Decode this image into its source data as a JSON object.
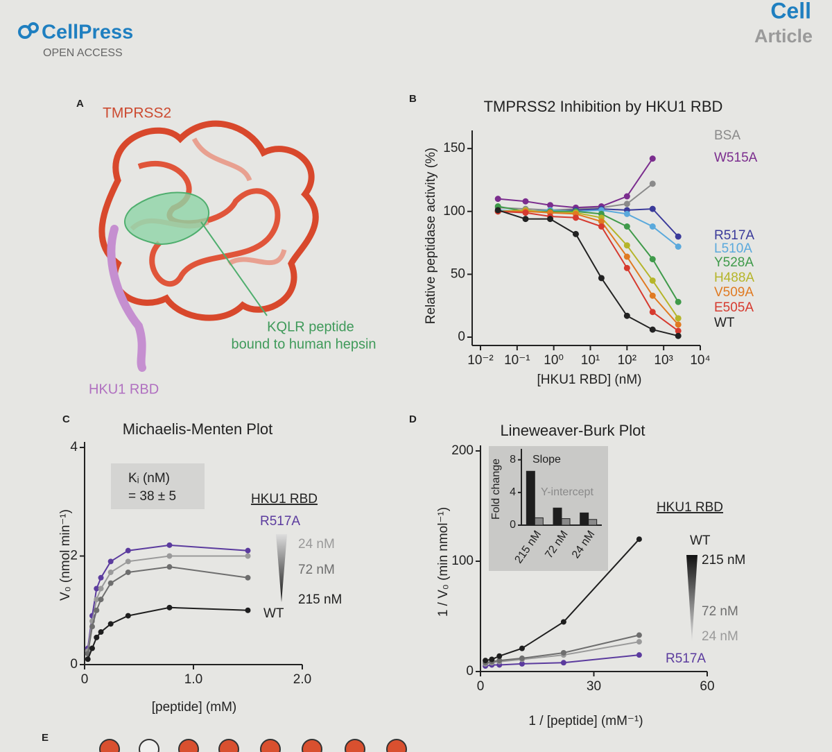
{
  "header": {
    "publisher": "CellPress",
    "access": "OPEN ACCESS",
    "journal": "Cell",
    "section": "Article"
  },
  "panel_a": {
    "panel": "A",
    "protein_label": "TMPRSS2",
    "peptide_label": [
      "KQLR peptide",
      "bound to human hepsin"
    ],
    "rbd_label": "HKU1 RBD"
  },
  "panel_e": {
    "panel": "E"
  },
  "chart_data": [
    {
      "type": "line",
      "panel": "B",
      "title": "TMPRSS2 Inhibition by HKU1 RBD",
      "x_label": "[HKU1 RBD] (nM)",
      "y_label": "Relative peptidase activity (%)",
      "x_scale": "log",
      "x": [
        0.03,
        0.17,
        0.8,
        4,
        20,
        100,
        500,
        2500
      ],
      "xlim": [
        0.01,
        10000
      ],
      "xticks": [
        {
          "value": 0.01,
          "label": "10⁻²"
        },
        {
          "value": 0.1,
          "label": "10⁻¹"
        },
        {
          "value": 1,
          "label": "10⁰"
        },
        {
          "value": 10,
          "label": "10¹"
        },
        {
          "value": 100,
          "label": "10²"
        },
        {
          "value": 1000,
          "label": "10³"
        },
        {
          "value": 10000,
          "label": "10⁴"
        }
      ],
      "ylim": [
        0,
        160
      ],
      "yticks": [
        0,
        50,
        100,
        150
      ],
      "series": [
        {
          "name": "BSA",
          "color": "#8a8a8a",
          "values": [
            103,
            102,
            101,
            102,
            103,
            106,
            122,
            null
          ]
        },
        {
          "name": "W515A",
          "color": "#7b2d8e",
          "values": [
            110,
            108,
            105,
            103,
            104,
            112,
            142,
            null
          ]
        },
        {
          "name": "R517A",
          "color": "#3a3a9a",
          "values": [
            100,
            100,
            100,
            101,
            102,
            101,
            102,
            80
          ]
        },
        {
          "name": "L510A",
          "color": "#5aa9dc",
          "values": [
            101,
            100,
            101,
            100,
            101,
            98,
            88,
            72
          ]
        },
        {
          "name": "Y528A",
          "color": "#3f9a4a",
          "values": [
            104,
            100,
            100,
            100,
            98,
            88,
            62,
            28
          ]
        },
        {
          "name": "H488A",
          "color": "#b5b52a",
          "values": [
            100,
            101,
            99,
            99,
            95,
            73,
            45,
            15
          ]
        },
        {
          "name": "V509A",
          "color": "#e07a22",
          "values": [
            100,
            100,
            99,
            98,
            92,
            64,
            33,
            10
          ]
        },
        {
          "name": "E505A",
          "color": "#d63a2f",
          "values": [
            100,
            99,
            96,
            95,
            88,
            55,
            20,
            5
          ]
        },
        {
          "name": "WT",
          "color": "#222222",
          "values": [
            101,
            94,
            94,
            82,
            47,
            17,
            6,
            1
          ]
        }
      ]
    },
    {
      "type": "line",
      "panel": "C",
      "title": "Michaelis-Menten Plot",
      "x_label": "[peptide] (mM)",
      "y_label": "V₀ (nmol min⁻¹)",
      "x": [
        0.03,
        0.07,
        0.11,
        0.15,
        0.24,
        0.4,
        0.78,
        1.5
      ],
      "xlim": [
        0,
        2
      ],
      "xticks": [
        0,
        {
          "value": 1,
          "label": "1.0"
        },
        {
          "value": 2,
          "label": "2.0"
        }
      ],
      "ylim": [
        0,
        4
      ],
      "yticks": [
        0,
        2,
        4
      ],
      "annotations": [
        "Kᵢ (nM)",
        "= 38 ± 5"
      ],
      "legend_title": "HKU1 RBD",
      "legend_note": "WT",
      "series": [
        {
          "name": "R517A",
          "color": "#5b3b9e",
          "values": [
            0.3,
            0.9,
            1.4,
            1.6,
            1.9,
            2.1,
            2.2,
            2.1
          ]
        },
        {
          "name": "24 nM",
          "color": "#9a9a9a",
          "values": [
            0.25,
            0.8,
            1.2,
            1.4,
            1.7,
            1.9,
            2.0,
            2.0
          ]
        },
        {
          "name": "72 nM",
          "color": "#6e6e6e",
          "values": [
            0.2,
            0.7,
            1.0,
            1.2,
            1.5,
            1.7,
            1.8,
            1.6
          ]
        },
        {
          "name": "215 nM",
          "color": "#1e1e1e",
          "values": [
            0.1,
            0.3,
            0.5,
            0.6,
            0.75,
            0.9,
            1.05,
            1.0
          ]
        }
      ]
    },
    {
      "type": "line",
      "panel": "D",
      "title": "Lineweaver-Burk Plot",
      "x_label": "1 / [peptide] (mM⁻¹)",
      "y_label": "1 / V₀ (min nmol⁻¹)",
      "x": [
        1.3,
        3,
        5,
        11,
        22,
        42
      ],
      "xlim": [
        0,
        60
      ],
      "xticks": [
        0,
        30,
        60
      ],
      "ylim": [
        0,
        200
      ],
      "yticks": [
        0,
        100,
        200
      ],
      "legend_title": "HKU1 RBD",
      "legend_note": "WT",
      "series": [
        {
          "name": "R517A",
          "color": "#5b3b9e",
          "values": [
            5,
            6,
            6,
            7,
            8,
            15
          ]
        },
        {
          "name": "24 nM",
          "color": "#9a9a9a",
          "values": [
            7,
            8,
            9,
            11,
            15,
            27
          ]
        },
        {
          "name": "72 nM",
          "color": "#6e6e6e",
          "values": [
            8,
            9,
            10,
            12,
            17,
            33
          ]
        },
        {
          "name": "215 nM",
          "color": "#1e1e1e",
          "values": [
            10,
            11,
            14,
            21,
            45,
            120
          ]
        }
      ]
    },
    {
      "type": "bar",
      "y_label": "Fold change",
      "categories": [
        "215 nM",
        "72 nM",
        "24 nM"
      ],
      "ylim": [
        0,
        9
      ],
      "yticks": [
        0,
        4,
        8
      ],
      "series": [
        {
          "name": "Slope",
          "color": "#1e1e1e",
          "values": [
            6.6,
            2.1,
            1.5
          ]
        },
        {
          "name": "Y-intercept",
          "color": "#8a8a8a",
          "values": [
            0.9,
            0.8,
            0.7
          ]
        }
      ]
    }
  ]
}
